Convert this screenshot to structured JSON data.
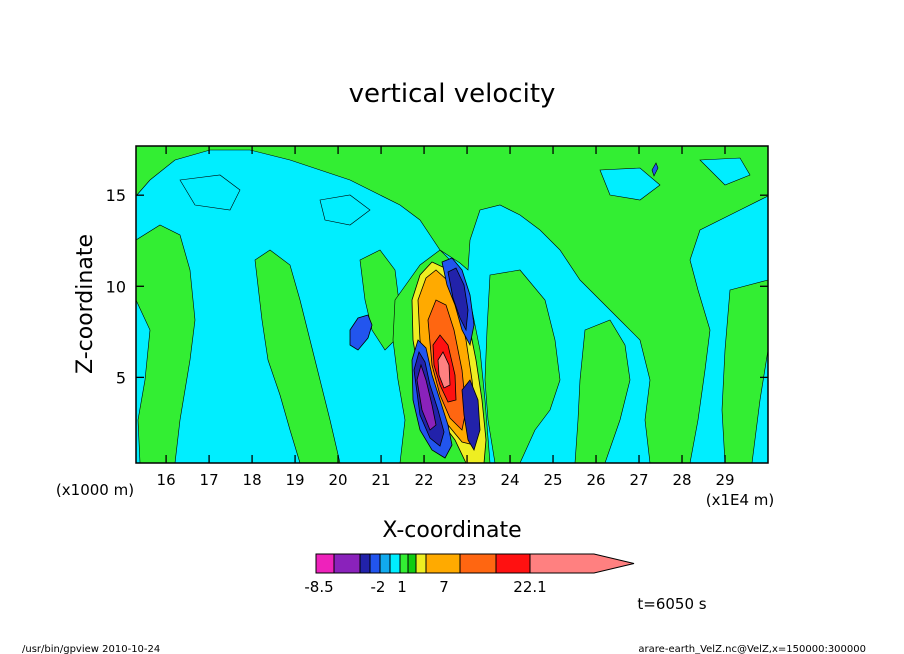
{
  "chart_data": {
    "type": "heatmap",
    "title": "vertical velocity",
    "xlabel": "X-coordinate",
    "ylabel": "Z-coordinate",
    "x_unit_note": "(x1E4 m)",
    "y_unit_note": "(x1000 m)",
    "xlim": [
      15.3,
      30.0
    ],
    "ylim": [
      0.3,
      17.7
    ],
    "x_ticks": [
      16,
      17,
      18,
      19,
      20,
      21,
      22,
      23,
      24,
      25,
      26,
      27,
      28,
      29
    ],
    "y_ticks": [
      5,
      10,
      15
    ],
    "time_label": "t=6050 s",
    "colorbar": {
      "levels": [
        -8.5,
        -6,
        -4,
        -2,
        -1,
        0,
        1,
        2,
        3,
        7,
        11,
        15,
        22.1
      ],
      "tick_labels": [
        "-8.5",
        "-2",
        "1",
        "7",
        "22.1"
      ],
      "tick_values": [
        -8.5,
        -2,
        1,
        7,
        22.1
      ],
      "colors": [
        "#ee22bb",
        "#8a22bb",
        "#2222aa",
        "#2255ee",
        "#11aaee",
        "#00eeff",
        "#33ee33",
        "#11cc11",
        "#eeee22",
        "#ffaa00",
        "#ff6611",
        "#ff1111",
        "#ff8080"
      ]
    },
    "regions": [
      {
        "level": 1,
        "note": "background weak ascent band pattern"
      },
      {
        "level": 22.1,
        "center": [
          22.15,
          5.8
        ],
        "note": "updraft core"
      },
      {
        "level": -8.5,
        "center": [
          22.0,
          3.5
        ],
        "note": "downdraft left of core"
      },
      {
        "level": -8.5,
        "center": [
          22.7,
          8.5
        ],
        "note": "downdraft right of core"
      }
    ]
  },
  "footer": {
    "left": "/usr/bin/gpview   2010-10-24",
    "right": "arare-earth_VelZ.nc@VelZ,x=150000:300000"
  }
}
